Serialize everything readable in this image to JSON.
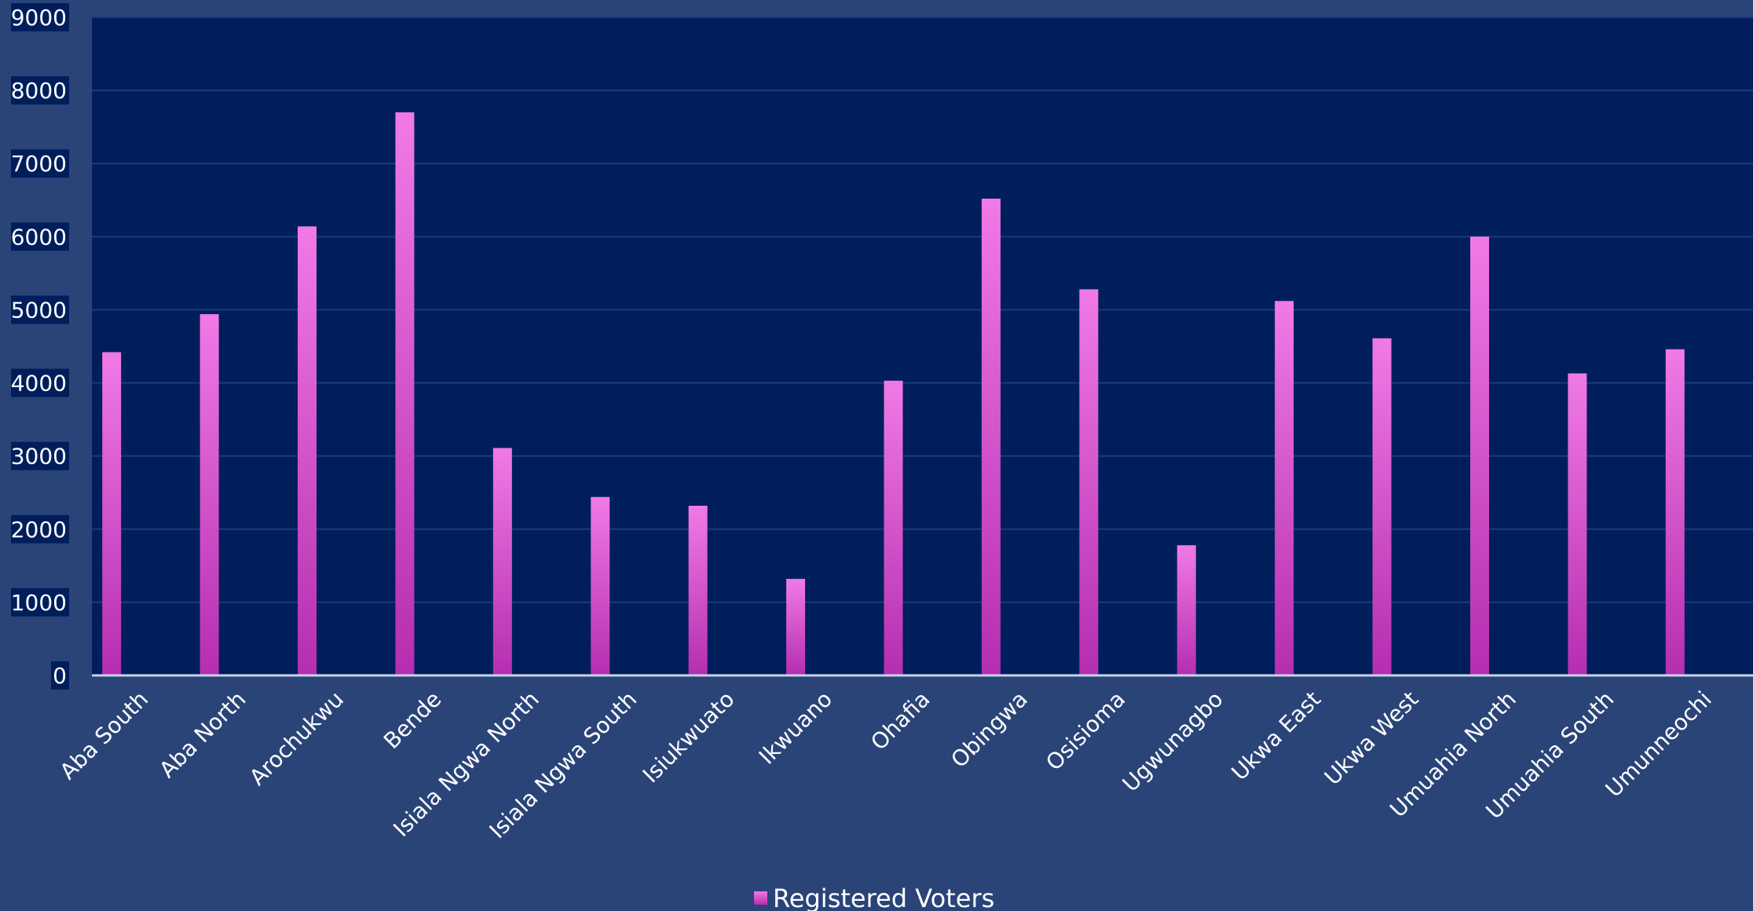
{
  "chart_data": {
    "type": "bar",
    "title": "",
    "xlabel": "",
    "ylabel": "",
    "ylim": [
      0,
      9000
    ],
    "yticks": [
      0,
      1000,
      2000,
      3000,
      4000,
      5000,
      6000,
      7000,
      8000,
      9000
    ],
    "grid": true,
    "legend_position": "bottom",
    "categories": [
      "Aba South",
      "Aba North",
      "Arochukwu",
      "Bende",
      "Isiala Ngwa North",
      "Isiala Ngwa South",
      "Isiukwuato",
      "Ikwuano",
      "Ohafia",
      "Obingwa",
      "Osisioma",
      "Ugwunagbo",
      "Ukwa East",
      "Ukwa West",
      "Umuahia North",
      "Umuahia South",
      "Umunneochi"
    ],
    "series": [
      {
        "name": "Registered Voters",
        "values": [
          4420,
          4940,
          6140,
          7700,
          3110,
          2440,
          2320,
          1320,
          4030,
          6520,
          5280,
          1780,
          5120,
          4610,
          6000,
          4130,
          4460
        ]
      }
    ],
    "colors": {
      "plot_background": "#001e5c",
      "outer_background": "#2a4478",
      "bar_light": "#f07ae6",
      "bar_dark": "#b52eb0",
      "gridline": "#1c3a78",
      "axis_line": "#c8d2ea",
      "text": "#ffffff"
    }
  }
}
